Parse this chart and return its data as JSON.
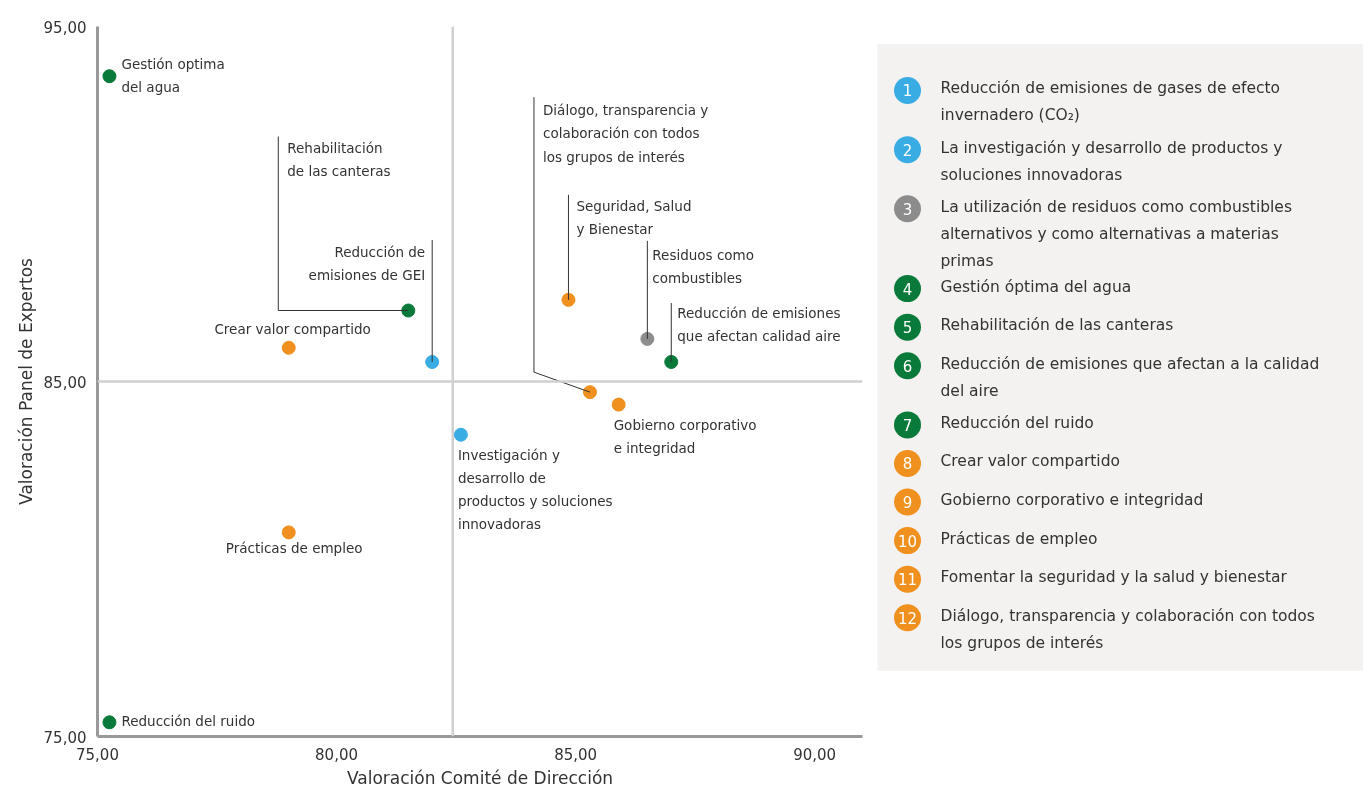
{
  "chart_data": [
    {
      "type": "scatter",
      "xlabel": "Valoración Comité de Dirección",
      "ylabel": "Valoración Panel de Expertos",
      "x": [
        75.25,
        81.5,
        82.0,
        79.0,
        84.85,
        86.5,
        87.0,
        85.3,
        85.9,
        82.6,
        79.0,
        75.25
      ],
      "values": [
        93.6,
        87.0,
        85.55,
        85.95,
        87.3,
        86.2,
        85.55,
        84.7,
        84.35,
        83.5,
        80.75,
        75.4
      ],
      "colors": [
        "#0a7a3a",
        "#0a7a3a",
        "#3aace4",
        "#f0901e",
        "#f0901e",
        "#8c8c8c",
        "#0a7a3a",
        "#f0901e",
        "#f0901e",
        "#3aace4",
        "#f0901e",
        "#0a7a3a"
      ],
      "annotations": [
        {
          "text": "Gestión optima\ndel agua",
          "x": 75.25,
          "y": 93.6
        },
        {
          "text": "Rehabilitación\nde las canteras",
          "x": 81.5,
          "y": 87.0
        },
        {
          "text": "Reducción de\nemisiones de GEI",
          "x": 82.0,
          "y": 85.55
        },
        {
          "text": "Crear valor compartido",
          "x": 79.0,
          "y": 85.95
        },
        {
          "text": "Seguridad, Salud\ny Bienestar",
          "x": 84.85,
          "y": 87.3
        },
        {
          "text": "Residuos como\ncombustibles",
          "x": 86.5,
          "y": 86.2
        },
        {
          "text": "Reducción de emisiones\nque afectan calidad aire",
          "x": 87.0,
          "y": 85.55
        },
        {
          "text": "Diálogo, transparencia y\ncolaboración con todos\nlos grupos de interés",
          "x": 85.3,
          "y": 84.7
        },
        {
          "text": "Gobierno corporativo\ne integridad",
          "x": 85.9,
          "y": 84.35
        },
        {
          "text": "Investigación y\ndesarrollo de\nproductos y soluciones\ninnovadoras",
          "x": 82.6,
          "y": 83.5
        },
        {
          "text": "Prácticas de empleo",
          "x": 79.0,
          "y": 80.75
        },
        {
          "text": "Reducción del ruido",
          "x": 75.25,
          "y": 75.4
        }
      ],
      "xlim": [
        75,
        91
      ],
      "ylim": [
        75,
        95
      ],
      "xticks": [
        {
          "value": 75,
          "label": "75,00"
        },
        {
          "value": 80,
          "label": "80,00"
        },
        {
          "value": 85,
          "label": "85,00"
        },
        {
          "value": 90,
          "label": "90,00"
        }
      ],
      "yticks": [
        {
          "value": 75,
          "label": "75,00"
        },
        {
          "value": 85,
          "label": "85,00"
        },
        {
          "value": 95,
          "label": "95,00"
        }
      ],
      "ref_lines": [
        {
          "axis": "x",
          "value": 82.43,
          "color": "#d0d0d0"
        },
        {
          "axis": "y",
          "value": 85,
          "color": "#d0d0d0"
        }
      ],
      "marker": "circle",
      "grid": false
    },
    {
      "type": "other",
      "categories": [
        "1",
        "2",
        "3",
        "4",
        "5",
        "6",
        "7",
        "8",
        "9",
        "10",
        "11",
        "12"
      ],
      "colors": [
        "#3aace4",
        "#3aace4",
        "#8c8c8c",
        "#0a7a3a",
        "#0a7a3a",
        "#0a7a3a",
        "#0a7a3a",
        "#f0901e",
        "#f0901e",
        "#f0901e",
        "#f0901e",
        "#f0901e"
      ],
      "annotations": [
        "Reducción de emisiones de gases de efecto\ninvernadero (CO₂)",
        "La investigación y desarrollo de productos y\nsoluciones innovadoras",
        "La utilización de residuos como combustibles\nalternativos y como alternativas a materias\nprimas",
        "Gestión óptima del agua",
        "Rehabilitación de las canteras",
        "Reducción de emisiones que afectan a la calidad\ndel aire",
        "Reducción del ruido",
        "Crear valor compartido",
        "Gobierno corporativo e integridad",
        "Prácticas de empleo",
        "Fomentar la seguridad y la salud y bienestar",
        "Diálogo, transparencia y colaboración con todos\nlos grupos de interés"
      ]
    }
  ]
}
